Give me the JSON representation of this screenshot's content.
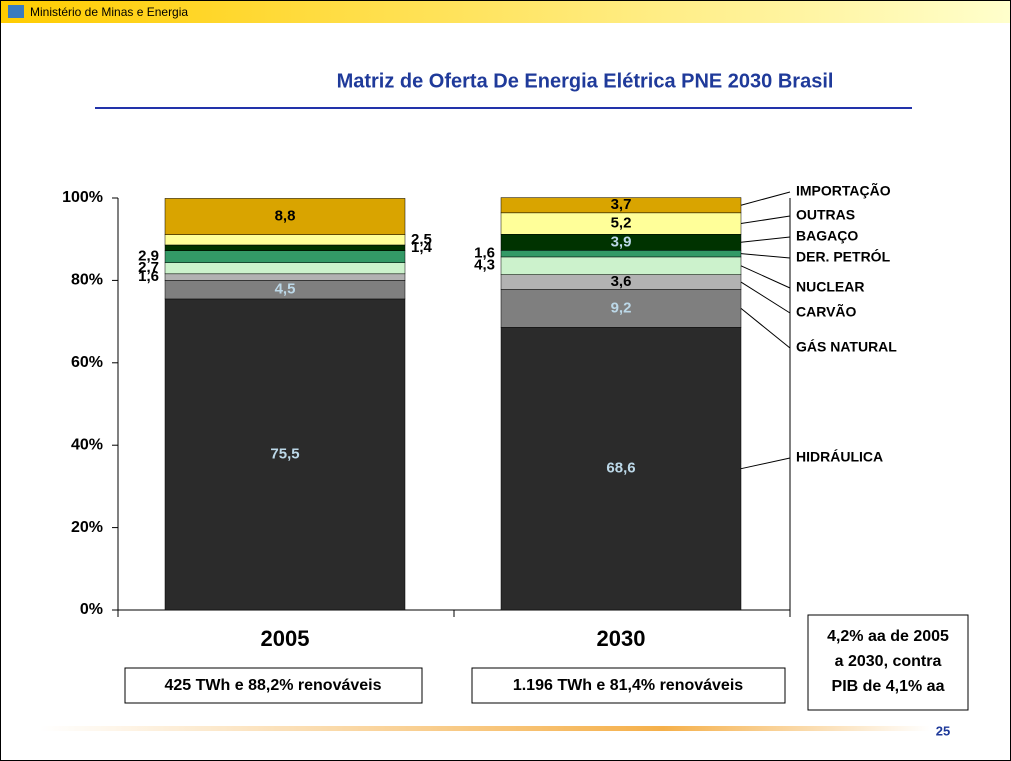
{
  "header": "Ministério de Minas e Energia",
  "page_number": "25",
  "chart_data": {
    "type": "bar",
    "stacked": true,
    "title": "Matriz de Oferta De Energia Elétrica  PNE 2030 Brasil",
    "categories": [
      "2005",
      "2030"
    ],
    "ylim": [
      0,
      100
    ],
    "yticks": [
      {
        "value": 0,
        "label": "0%"
      },
      {
        "value": 20,
        "label": "20%"
      },
      {
        "value": 40,
        "label": "40%"
      },
      {
        "value": 60,
        "label": "60%"
      },
      {
        "value": 80,
        "label": "80%"
      },
      {
        "value": 100,
        "label": "100%"
      }
    ],
    "series": [
      {
        "name": "HIDRÁULICA",
        "color": "#2b2b2b",
        "values": [
          75.5,
          68.6
        ],
        "value_labels": [
          "75,5",
          "68,6"
        ]
      },
      {
        "name": "GÁS NATURAL",
        "color": "#7f7f7f",
        "values": [
          4.5,
          9.2
        ],
        "value_labels": [
          "4,5",
          "9,2"
        ]
      },
      {
        "name": "CARVÃO",
        "color": "#b2b2b2",
        "values": [
          1.6,
          3.6
        ],
        "value_labels": [
          "1,6",
          "3,6"
        ]
      },
      {
        "name": "NUCLEAR",
        "color": "#ccf2cc",
        "values": [
          2.7,
          4.3
        ],
        "value_labels": [
          "2,7",
          "4,3"
        ]
      },
      {
        "name": "DER. PETRÓL",
        "color": "#339966",
        "values": [
          2.9,
          1.6
        ],
        "value_labels": [
          "2,9",
          "1,6"
        ]
      },
      {
        "name": "BAGAÇO",
        "color": "#003300",
        "values": [
          1.4,
          3.9
        ],
        "value_labels": [
          "1,4",
          "3,9"
        ]
      },
      {
        "name": "OUTRAS",
        "color": "#ffff99",
        "values": [
          2.5,
          5.2
        ],
        "value_labels": [
          "2,5",
          "5,2"
        ]
      },
      {
        "name": "IMPORTAÇÃO",
        "color": "#d9a400",
        "values": [
          8.8,
          3.7
        ],
        "value_labels": [
          "8,8",
          "3,7"
        ]
      }
    ],
    "annotations": [
      "425 TWh e 88,2% renováveis",
      "1.196 TWh e 81,4% renováveis"
    ],
    "note": [
      "4,2% aa de 2005",
      "a 2030, contra",
      "PIB de 4,1% aa"
    ]
  }
}
